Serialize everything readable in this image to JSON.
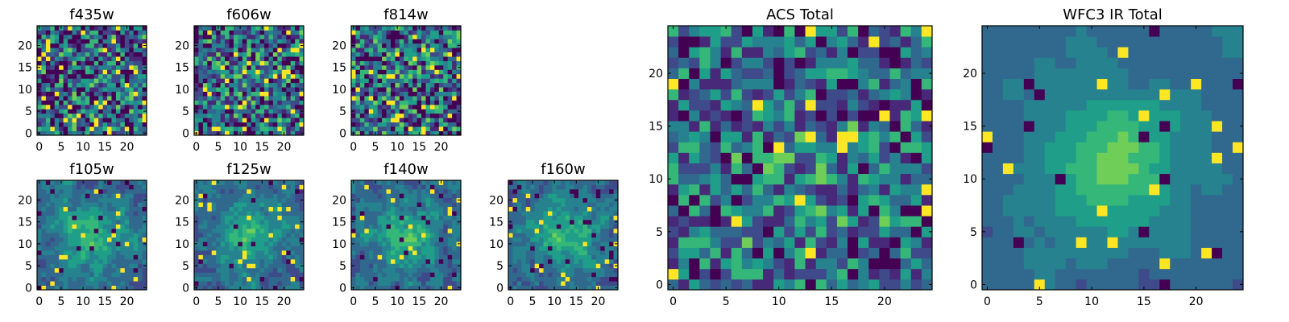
{
  "chart_data": [
    {
      "type": "heatmap",
      "title": "f435w",
      "xlim": [
        0,
        25
      ],
      "ylim": [
        0,
        25
      ],
      "xticks": [
        0,
        5,
        10,
        15,
        20
      ],
      "yticks": [
        0,
        5,
        10,
        15,
        20
      ],
      "seed": 11,
      "smooth": 0,
      "blob": 0.05,
      "noise": 0.85,
      "dark_frac": 0.05,
      "bright_frac": 0.05
    },
    {
      "type": "heatmap",
      "title": "f606w",
      "xlim": [
        0,
        25
      ],
      "ylim": [
        0,
        25
      ],
      "xticks": [
        0,
        5,
        10,
        15,
        20
      ],
      "yticks": [
        0,
        5,
        10,
        15,
        20
      ],
      "seed": 23,
      "smooth": 0,
      "blob": 0.15,
      "noise": 0.8,
      "dark_frac": 0.05,
      "bright_frac": 0.06
    },
    {
      "type": "heatmap",
      "title": "f814w",
      "xlim": [
        0,
        25
      ],
      "ylim": [
        0,
        25
      ],
      "xticks": [
        0,
        5,
        10,
        15,
        20
      ],
      "yticks": [
        0,
        5,
        10,
        15,
        20
      ],
      "seed": 37,
      "smooth": 0,
      "blob": 0.1,
      "noise": 0.85,
      "dark_frac": 0.06,
      "bright_frac": 0.05
    },
    {
      "type": "heatmap",
      "title": "f105w",
      "xlim": [
        0,
        25
      ],
      "ylim": [
        0,
        25
      ],
      "xticks": [
        0,
        5,
        10,
        15,
        20
      ],
      "yticks": [
        0,
        5,
        10,
        15,
        20
      ],
      "seed": 41,
      "smooth": 1,
      "blob": 0.5,
      "noise": 0.5,
      "dark_frac": 0.04,
      "bright_frac": 0.03
    },
    {
      "type": "heatmap",
      "title": "f125w",
      "xlim": [
        0,
        25
      ],
      "ylim": [
        0,
        25
      ],
      "xticks": [
        0,
        5,
        10,
        15,
        20
      ],
      "yticks": [
        0,
        5,
        10,
        15,
        20
      ],
      "seed": 53,
      "smooth": 1,
      "blob": 0.45,
      "noise": 0.5,
      "dark_frac": 0.02,
      "bright_frac": 0.03
    },
    {
      "type": "heatmap",
      "title": "f140w",
      "xlim": [
        0,
        25
      ],
      "ylim": [
        0,
        25
      ],
      "xticks": [
        0,
        5,
        10,
        15,
        20
      ],
      "yticks": [
        0,
        5,
        10,
        15,
        20
      ],
      "seed": 67,
      "smooth": 1,
      "blob": 0.45,
      "noise": 0.55,
      "dark_frac": 0.03,
      "bright_frac": 0.03
    },
    {
      "type": "heatmap",
      "title": "f160w",
      "xlim": [
        0,
        25
      ],
      "ylim": [
        0,
        25
      ],
      "xticks": [
        0,
        5,
        10,
        15,
        20
      ],
      "yticks": [
        0,
        5,
        10,
        15,
        20
      ],
      "seed": 79,
      "smooth": 1,
      "blob": 0.5,
      "noise": 0.5,
      "dark_frac": 0.05,
      "bright_frac": 0.04
    },
    {
      "type": "heatmap",
      "title": "ACS Total",
      "xlim": [
        0,
        25
      ],
      "ylim": [
        0,
        25
      ],
      "xticks": [
        0,
        5,
        10,
        15,
        20
      ],
      "yticks": [
        0,
        5,
        10,
        15,
        20
      ],
      "seed": 97,
      "smooth": 0,
      "blob": 0.15,
      "noise": 0.75,
      "dark_frac": 0.03,
      "bright_frac": 0.04
    },
    {
      "type": "heatmap",
      "title": "WFC3 IR Total",
      "xlim": [
        0,
        25
      ],
      "ylim": [
        0,
        25
      ],
      "xticks": [
        0,
        5,
        10,
        15,
        20
      ],
      "yticks": [
        0,
        5,
        10,
        15,
        20
      ],
      "seed": 101,
      "smooth": 2,
      "blob": 0.6,
      "noise": 0.35,
      "dark_frac": 0.03,
      "bright_frac": 0.03
    }
  ],
  "colors": {
    "viridis": [
      "#440154",
      "#482878",
      "#3e4a89",
      "#31688e",
      "#26828e",
      "#1f9e89",
      "#35b779",
      "#6ece58",
      "#b5de2b",
      "#fde725"
    ],
    "frame": "#000000",
    "text": "#000000",
    "background": "#ffffff"
  }
}
